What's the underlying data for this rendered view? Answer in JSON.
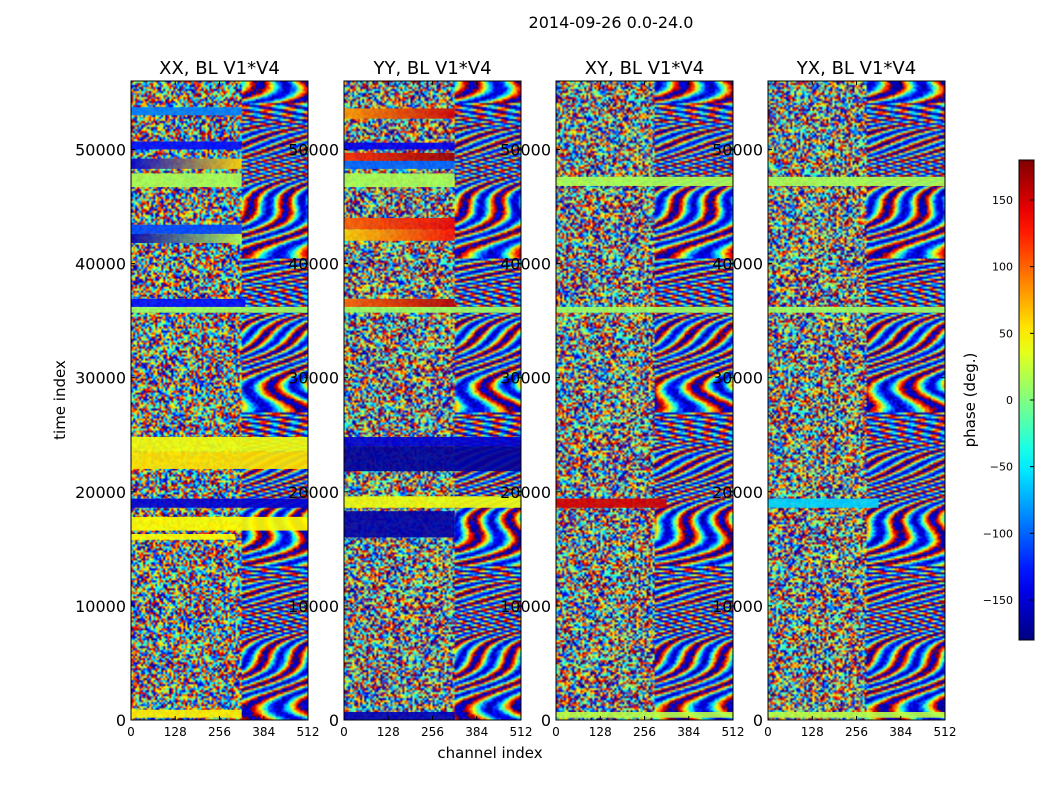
{
  "figure": {
    "suptitle": "2014-09-26 0.0-24.0",
    "ylabel": "time index",
    "xlabel": "channel index",
    "colorbar_label": "phase (deg.)"
  },
  "chart_data": {
    "type": "heatmap",
    "colormap": "jet",
    "colorbar": {
      "min": -180,
      "max": 180,
      "ticks": [
        150,
        100,
        50,
        0,
        -50,
        -100,
        -150
      ]
    },
    "x_ticks": [
      0,
      128,
      256,
      384,
      512
    ],
    "y_ticks": [
      0,
      10000,
      20000,
      30000,
      40000,
      50000
    ],
    "xlim": [
      0,
      512
    ],
    "ylim": [
      0,
      56000
    ],
    "panels": [
      {
        "title": "XX, BL V1*V4",
        "notes": "noisy phase; coherent fringes in channels ~320-512",
        "bands": [
          {
            "y0": 53000,
            "y1": 53700,
            "phase": -90,
            "x1": 320
          },
          {
            "y0": 50000,
            "y1": 50700,
            "phase": -130,
            "x1": 320
          },
          {
            "y0": 48300,
            "y1": 49200,
            "phase": -150,
            "x1": 320,
            "gradient_to": 60
          },
          {
            "y0": 46700,
            "y1": 47900,
            "phase": 15,
            "x1": 320
          },
          {
            "y0": 42600,
            "y1": 43400,
            "phase": -110,
            "x1": 320
          },
          {
            "y0": 41800,
            "y1": 42600,
            "phase": -160,
            "x1": 320,
            "gradient_to": 20
          },
          {
            "y0": 36200,
            "y1": 36900,
            "phase": -130,
            "x1": 330
          },
          {
            "y0": 35700,
            "y1": 36200,
            "phase": 10,
            "x1": 512
          },
          {
            "y0": 23500,
            "y1": 24800,
            "phase": 40,
            "x1": 512
          },
          {
            "y0": 22000,
            "y1": 23500,
            "phase": 55,
            "x1": 512
          },
          {
            "y0": 18600,
            "y1": 19400,
            "phase": -150,
            "x1": 512
          },
          {
            "y0": 16600,
            "y1": 17800,
            "phase": 45,
            "x1": 512
          },
          {
            "y0": 15800,
            "y1": 16300,
            "phase": 45,
            "x1": 300
          },
          {
            "y0": 200,
            "y1": 900,
            "phase": 50,
            "x1": 320
          }
        ]
      },
      {
        "title": "YY, BL V1*V4",
        "notes": "strong bands; coherent fringes in channels ~320-512",
        "bands": [
          {
            "y0": 52700,
            "y1": 53600,
            "phase": 80,
            "x1": 320,
            "gradient_to": 150
          },
          {
            "y0": 50000,
            "y1": 50600,
            "phase": -140,
            "x1": 320
          },
          {
            "y0": 49000,
            "y1": 49700,
            "phase": 120,
            "x1": 320,
            "gradient_to": 170
          },
          {
            "y0": 48300,
            "y1": 49000,
            "phase": -100,
            "x1": 320
          },
          {
            "y0": 46700,
            "y1": 47900,
            "phase": 15,
            "x1": 320
          },
          {
            "y0": 43000,
            "y1": 44000,
            "phase": 100,
            "x1": 320,
            "gradient_to": 140
          },
          {
            "y0": 42000,
            "y1": 43000,
            "phase": 60,
            "x1": 320,
            "gradient_to": 130
          },
          {
            "y0": 36200,
            "y1": 36900,
            "phase": 100,
            "x1": 320,
            "gradient_to": 160
          },
          {
            "y0": 35700,
            "y1": 36200,
            "phase": 10,
            "x1": 512
          },
          {
            "y0": 24000,
            "y1": 24800,
            "phase": -150,
            "x1": 512
          },
          {
            "y0": 21800,
            "y1": 24000,
            "phase": -170,
            "x1": 512
          },
          {
            "y0": 18600,
            "y1": 19600,
            "phase": 40,
            "x1": 512
          },
          {
            "y0": 16000,
            "y1": 18300,
            "phase": -165,
            "x1": 320
          },
          {
            "y0": 0,
            "y1": 700,
            "phase": -160,
            "x1": 320
          }
        ]
      },
      {
        "title": "XY, BL V1*V4",
        "notes": "noisy phase; coherent fringes in channels ~280-512",
        "bands": [
          {
            "y0": 46800,
            "y1": 47600,
            "phase": 15,
            "x1": 512
          },
          {
            "y0": 35700,
            "y1": 36200,
            "phase": 10,
            "x1": 512
          },
          {
            "y0": 18600,
            "y1": 19400,
            "phase": 150,
            "x1": 320
          },
          {
            "y0": 200,
            "y1": 700,
            "phase": 20,
            "x1": 512
          }
        ]
      },
      {
        "title": "YX, BL V1*V4",
        "notes": "noisy phase; coherent fringes in channels ~280-512",
        "bands": [
          {
            "y0": 46800,
            "y1": 47600,
            "phase": 15,
            "x1": 512
          },
          {
            "y0": 35700,
            "y1": 36200,
            "phase": 10,
            "x1": 512
          },
          {
            "y0": 18600,
            "y1": 19400,
            "phase": -60,
            "x1": 320
          },
          {
            "y0": 200,
            "y1": 700,
            "phase": 20,
            "x1": 512
          }
        ]
      }
    ]
  }
}
